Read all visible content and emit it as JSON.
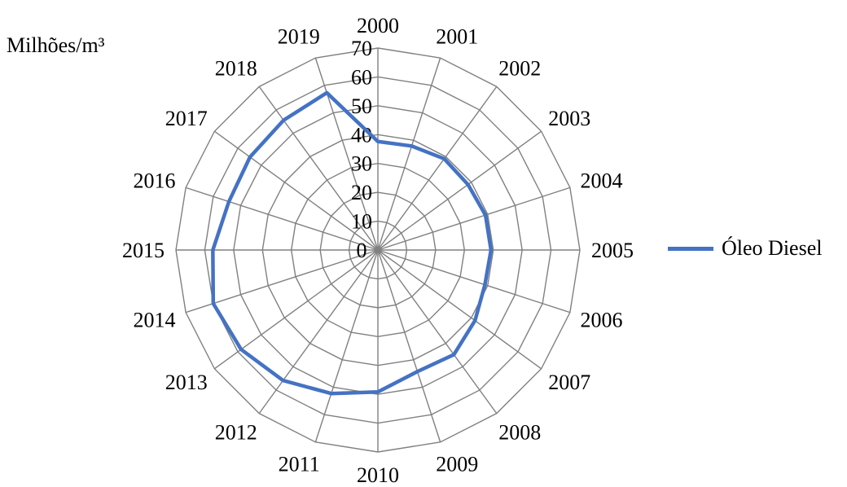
{
  "chart_data": {
    "type": "radar",
    "unit_label": "Milhões/m³",
    "categories": [
      "2000",
      "2001",
      "2002",
      "2003",
      "2004",
      "2005",
      "2006",
      "2007",
      "2008",
      "2009",
      "2010",
      "2011",
      "2012",
      "2013",
      "2014",
      "2015",
      "2016",
      "2017",
      "2018",
      "2019"
    ],
    "radial_ticks": [
      "0",
      "10",
      "20",
      "30",
      "40",
      "50",
      "60",
      "70"
    ],
    "rmax": 70,
    "series": [
      {
        "name": "Óleo Diesel",
        "color": "#4472C4",
        "values": [
          37.6,
          37.9,
          39.1,
          38.6,
          39.2,
          39.2,
          39.0,
          41.6,
          44.8,
          44.3,
          49.2,
          52.3,
          55.9,
          58.6,
          60.0,
          57.2,
          54.3,
          54.8,
          55.6,
          57.3
        ]
      }
    ],
    "grid": true,
    "legend_position": "right"
  }
}
